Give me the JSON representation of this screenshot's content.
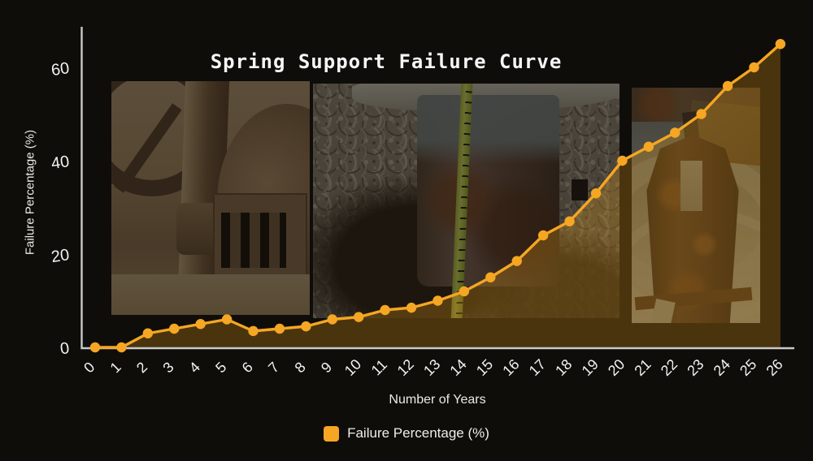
{
  "header": {
    "title": "Spring Support Failure Curve"
  },
  "chart_data": {
    "type": "line",
    "title": "Spring Support Failure Curve",
    "xlabel": "Number of Years",
    "ylabel": "Failure Percentage (%)",
    "x": [
      0,
      1,
      2,
      3,
      4,
      5,
      6,
      7,
      8,
      9,
      10,
      11,
      12,
      13,
      14,
      15,
      16,
      17,
      18,
      19,
      20,
      21,
      22,
      23,
      24,
      25,
      26
    ],
    "series": [
      {
        "name": "Failure Percentage (%)",
        "color": "#f5a623",
        "values": [
          0,
          0,
          3,
          4,
          5,
          6,
          3.5,
          4,
          4.5,
          6,
          6.5,
          8,
          8.5,
          10,
          12,
          15,
          18.5,
          24,
          27,
          33,
          40,
          43,
          46,
          50,
          56,
          60,
          65
        ]
      }
    ],
    "ylim": [
      0,
      68
    ],
    "yticks": [
      0,
      20,
      40,
      60
    ],
    "grid": false,
    "legend_position": "bottom",
    "marker": "circle",
    "area_fill": true
  },
  "legend": {
    "items": [
      {
        "label": "Failure Percentage (%)",
        "swatch_color": "#f5a623"
      }
    ]
  },
  "colors": {
    "accent": "#f5a623",
    "background": "#0f0d0a",
    "axis": "#c9c9c9",
    "tick_text": "#f2f2f2",
    "area": "rgba(244,168,28,0.26)"
  }
}
